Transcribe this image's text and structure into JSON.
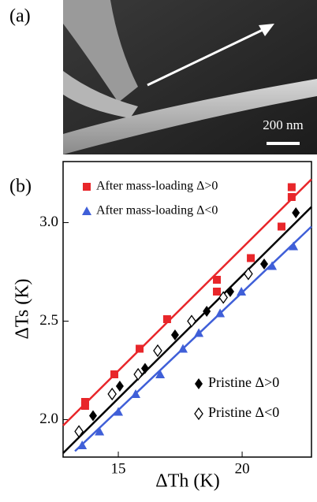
{
  "panel_a": {
    "label": "(a)",
    "scale_bar": "200 nm"
  },
  "chart_data": {
    "type": "scatter",
    "panel_label": "(b)",
    "xlabel": "ΔTh (K)",
    "ylabel": "ΔTs (K)",
    "xlim": [
      12.77,
      22.8
    ],
    "ylim": [
      1.81,
      3.31
    ],
    "xticks": [
      15,
      20
    ],
    "yticks": [
      {
        "value": 2,
        "label": "2.0"
      },
      2.5,
      {
        "value": 3,
        "label": "3.0"
      }
    ],
    "series": [
      {
        "name": "After mass-loading Δ>0",
        "color": "#e8262a",
        "marker": "square",
        "x": [
          13.66,
          13.66,
          14.84,
          15.86,
          16.97,
          18.98,
          18.98,
          20.35,
          21.59,
          22.0,
          22.0
        ],
        "values": [
          2.09,
          2.07,
          2.23,
          2.36,
          2.51,
          2.65,
          2.71,
          2.82,
          2.98,
          3.13,
          3.18
        ]
      },
      {
        "name": "After mass-loading Δ<0",
        "color": "#3f5fd8",
        "marker": "triangle",
        "x": [
          13.54,
          14.24,
          15.0,
          15.7,
          16.69,
          17.61,
          18.25,
          19.11,
          19.97,
          21.21,
          22.07
        ],
        "values": [
          1.87,
          1.94,
          2.04,
          2.13,
          2.23,
          2.36,
          2.44,
          2.54,
          2.65,
          2.78,
          2.88
        ]
      },
      {
        "name": "Pristine Δ>0",
        "color": "#000000",
        "marker": "diamond",
        "x": [
          13.98,
          15.06,
          16.08,
          17.29,
          18.57,
          19.52,
          20.89,
          22.17
        ],
        "values": [
          2.02,
          2.17,
          2.26,
          2.43,
          2.55,
          2.65,
          2.79,
          3.05
        ]
      },
      {
        "name": "Pristine Δ<0",
        "color": "#000000",
        "marker": "open-diamond",
        "x": [
          13.41,
          14.75,
          15.8,
          16.59,
          17.96,
          19.24,
          20.25
        ],
        "values": [
          1.94,
          2.13,
          2.23,
          2.35,
          2.5,
          2.62,
          2.74
        ]
      }
    ],
    "fit_lines": [
      {
        "color": "#e8262a",
        "x": [
          12.77,
          22.8
        ],
        "values": [
          1.97,
          3.22
        ]
      },
      {
        "color": "#000000",
        "x": [
          12.77,
          22.8
        ],
        "values": [
          1.83,
          3.08
        ]
      },
      {
        "color": "#3f5fd8",
        "x": [
          13.25,
          22.8
        ],
        "values": [
          1.84,
          2.98
        ]
      }
    ]
  }
}
